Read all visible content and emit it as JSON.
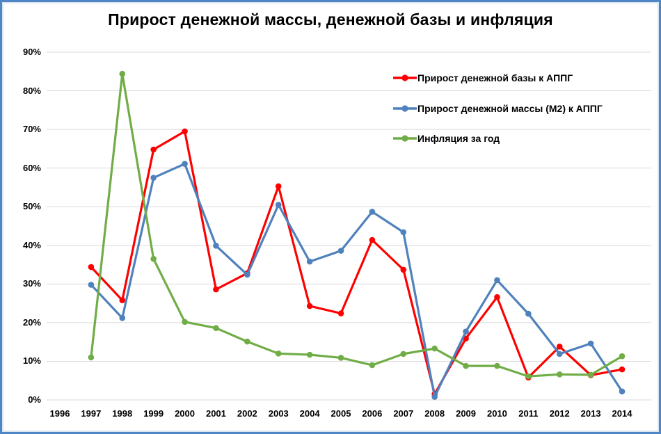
{
  "window": {
    "border_color": "#4F86C6",
    "background": "#FFFFFF"
  },
  "colors": {
    "grid": "#D9D9D9",
    "red": "#FF0000",
    "blue": "#4F81BD",
    "green": "#70AD47"
  },
  "chart_data": {
    "type": "line",
    "title": "Прирост денежной массы, денежной базы и инфляция",
    "xlabel": "",
    "ylabel": "",
    "ylim": [
      0,
      90
    ],
    "grid": true,
    "legend_position": "inside-top-right",
    "y_ticks": [
      "90%",
      "80%",
      "70%",
      "60%",
      "50%",
      "40%",
      "30%",
      "20%",
      "10%",
      "0%"
    ],
    "axis_years": [
      1996,
      1997,
      1998,
      1999,
      2000,
      2001,
      2002,
      2003,
      2004,
      2005,
      2006,
      2007,
      2008,
      2009,
      2010,
      2011,
      2012,
      2013,
      2014
    ],
    "data_years": [
      1997,
      1998,
      1999,
      2000,
      2001,
      2002,
      2003,
      2004,
      2005,
      2006,
      2007,
      2008,
      2009,
      2010,
      2011,
      2012,
      2013,
      2014
    ],
    "series": [
      {
        "id": "base-growth",
        "name": "Прирост денежной базы к АППГ",
        "color": "#FF0000",
        "values": [
          34.4,
          25.8,
          64.8,
          69.5,
          28.6,
          32.8,
          55.3,
          24.3,
          22.4,
          41.4,
          33.7,
          1.5,
          15.9,
          26.6,
          5.8,
          13.8,
          6.4,
          7.9
        ]
      },
      {
        "id": "m2-growth",
        "name": "Прирост денежной массы (М2) к АППГ",
        "color": "#4F81BD",
        "values": [
          29.8,
          21.2,
          57.5,
          61.1,
          39.9,
          32.4,
          50.5,
          35.8,
          38.6,
          48.7,
          43.4,
          0.8,
          17.7,
          31.0,
          22.3,
          11.9,
          14.6,
          2.2
        ]
      },
      {
        "id": "inflation",
        "name": "Инфляция за год",
        "color": "#70AD47",
        "values": [
          11.0,
          84.4,
          36.5,
          20.2,
          18.6,
          15.1,
          12.0,
          11.7,
          10.9,
          9.0,
          11.9,
          13.3,
          8.8,
          8.8,
          6.1,
          6.6,
          6.5,
          11.3
        ]
      }
    ]
  }
}
